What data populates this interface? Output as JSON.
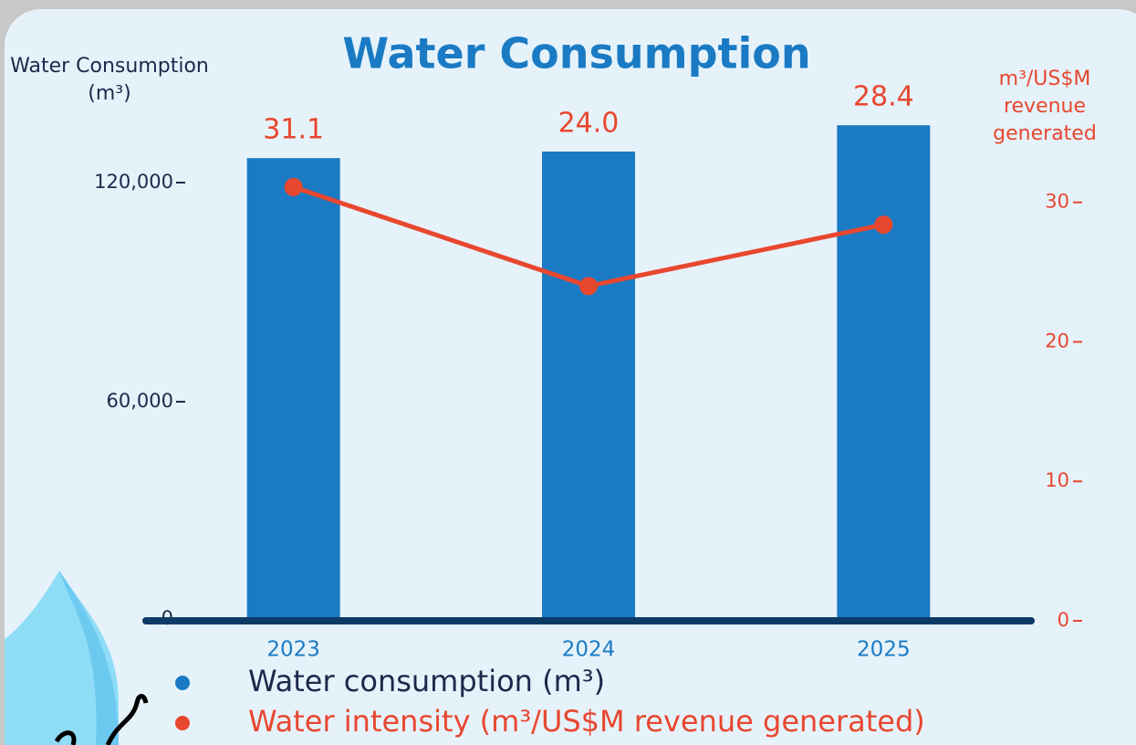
{
  "chart_data": {
    "type": "bar-line",
    "title": "Water Consumption",
    "y_label": "Water Consumption (m³)",
    "y2_label": "m³/US$M revenue generated",
    "categories": [
      "2023",
      "2024",
      "2025"
    ],
    "series": [
      {
        "name": "Water consumption (m³)",
        "type": "bar",
        "color": "#1a7bc4",
        "values": [
          126700,
          128500,
          135700
        ]
      },
      {
        "name": "Water intensity (m³/US$M revenue generated)",
        "type": "line",
        "axis": "y2",
        "color": "#e8472f",
        "values": [
          31.1,
          24.0,
          28.4
        ],
        "value_labels": [
          "31.1",
          "24.0",
          "28.4"
        ]
      }
    ],
    "ylim": [
      0,
      137500
    ],
    "yticks": [
      0,
      {
        "value": 60000,
        "label": "60,000"
      },
      {
        "value": 120000,
        "label": "120,000"
      }
    ],
    "y2lim": [
      0,
      36
    ],
    "y2ticks": [
      0,
      10,
      20,
      30
    ]
  }
}
